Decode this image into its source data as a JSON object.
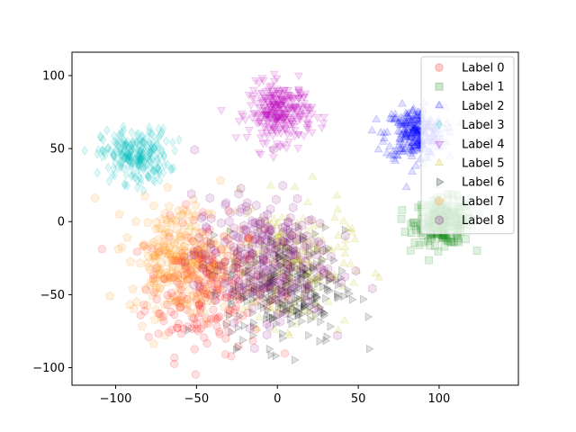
{
  "chart_data": {
    "type": "scatter",
    "title": "",
    "xlabel": "",
    "ylabel": "",
    "xlim": [
      -127,
      149
    ],
    "ylim": [
      -112,
      116
    ],
    "xticks": [
      -100,
      -50,
      0,
      50,
      100
    ],
    "yticks": [
      -100,
      -50,
      0,
      50,
      100
    ],
    "grid": false,
    "legend_placement": "top-right",
    "series": [
      {
        "name": "Label 0",
        "marker": "circle",
        "color": "#ff0000",
        "cx": -45,
        "cy": -45,
        "sx": 28,
        "sy": 35,
        "n": 240
      },
      {
        "name": "Label 1",
        "marker": "square",
        "color": "#008000",
        "cx": 103,
        "cy": 0,
        "sx": 14,
        "sy": 12,
        "n": 260
      },
      {
        "name": "Label 2",
        "marker": "triangle-up",
        "color": "#0000ff",
        "cx": 85,
        "cy": 60,
        "sx": 14,
        "sy": 14,
        "n": 260
      },
      {
        "name": "Label 3",
        "marker": "diamond",
        "color": "#00bfbf",
        "cx": -88,
        "cy": 45,
        "sx": 16,
        "sy": 14,
        "n": 240
      },
      {
        "name": "Label 4",
        "marker": "triangle-down",
        "color": "#bf00bf",
        "cx": 2,
        "cy": 75,
        "sx": 15,
        "sy": 15,
        "n": 280
      },
      {
        "name": "Label 5",
        "marker": "triangle-up",
        "color": "#bfbf00",
        "cx": 5,
        "cy": -30,
        "sx": 30,
        "sy": 32,
        "n": 240
      },
      {
        "name": "Label 6",
        "marker": "triangle-right",
        "color": "#000000",
        "cx": 5,
        "cy": -45,
        "sx": 28,
        "sy": 30,
        "n": 280
      },
      {
        "name": "Label 7",
        "marker": "pentagon",
        "color": "#ff8c00",
        "cx": -60,
        "cy": -25,
        "sx": 24,
        "sy": 30,
        "n": 260
      },
      {
        "name": "Label 8",
        "marker": "hexagon",
        "color": "#800080",
        "cx": -10,
        "cy": -25,
        "sx": 32,
        "sy": 32,
        "n": 280
      }
    ]
  }
}
